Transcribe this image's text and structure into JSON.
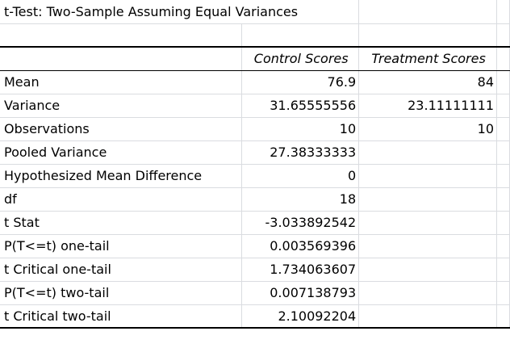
{
  "title": "t-Test: Two-Sample Assuming Equal Variances",
  "header": {
    "col1": "Control Scores",
    "col2": "Treatment Scores"
  },
  "rows": [
    {
      "label": "Mean",
      "control": "76.9",
      "treatment": "84"
    },
    {
      "label": "Variance",
      "control": "31.65555556",
      "treatment": "23.11111111"
    },
    {
      "label": "Observations",
      "control": "10",
      "treatment": "10"
    },
    {
      "label": "Pooled Variance",
      "control": "27.38333333",
      "treatment": ""
    },
    {
      "label": "Hypothesized Mean Difference",
      "control": "0",
      "treatment": ""
    },
    {
      "label": "df",
      "control": "18",
      "treatment": ""
    },
    {
      "label": "t Stat",
      "control": "-3.033892542",
      "treatment": ""
    },
    {
      "label": "P(T<=t) one-tail",
      "control": "0.003569396",
      "treatment": ""
    },
    {
      "label": "t Critical one-tail",
      "control": "1.734063607",
      "treatment": ""
    },
    {
      "label": "P(T<=t) two-tail",
      "control": "0.007138793",
      "treatment": ""
    },
    {
      "label": "t Critical two-tail",
      "control": "2.10092204",
      "treatment": ""
    }
  ]
}
